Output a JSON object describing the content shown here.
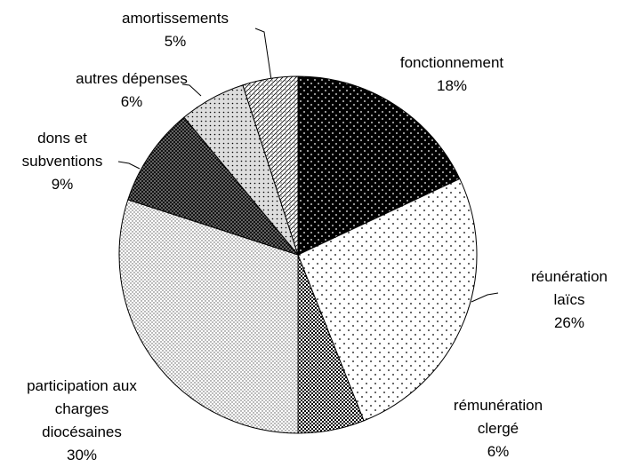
{
  "chart_data": {
    "type": "pie",
    "categories": [
      "fonctionnement",
      "réunération laïcs",
      "rémunération\nclergé",
      "participation aux\ncharges\ndiocésaines",
      "dons et\nsubventions",
      "autres dépenses",
      "amortissements"
    ],
    "values": [
      18,
      26,
      6,
      30,
      9,
      6,
      5
    ],
    "value_labels": [
      "18%",
      "26%",
      "6%",
      "30%",
      "9%",
      "6%",
      "5%"
    ]
  }
}
